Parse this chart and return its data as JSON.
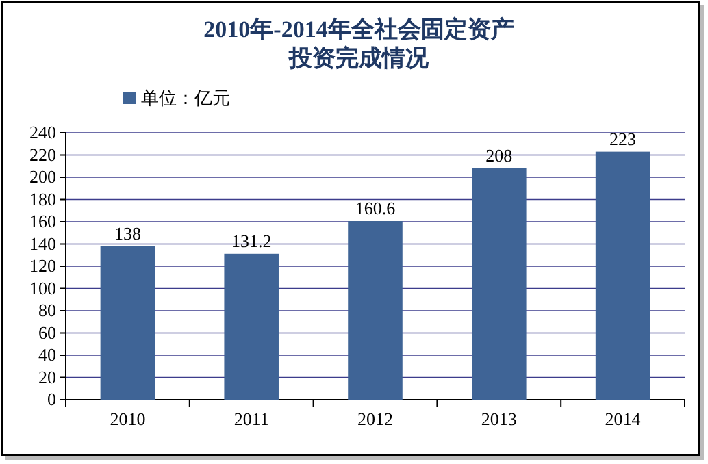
{
  "chart_data": {
    "type": "bar",
    "title": "2010年-2014年全社会固定资产投资完成情况",
    "categories": [
      "2010",
      "2011",
      "2012",
      "2013",
      "2014"
    ],
    "series": [
      {
        "name": "单位：亿元",
        "color": "#3f6496",
        "values": [
          138,
          131.2,
          160.6,
          208,
          223
        ]
      }
    ],
    "ylim": [
      0,
      240
    ],
    "yticks": [
      0,
      20,
      40,
      60,
      80,
      100,
      120,
      140,
      160,
      180,
      200,
      220,
      240
    ],
    "grid": "y",
    "legend": "top left",
    "data_labels": true
  }
}
